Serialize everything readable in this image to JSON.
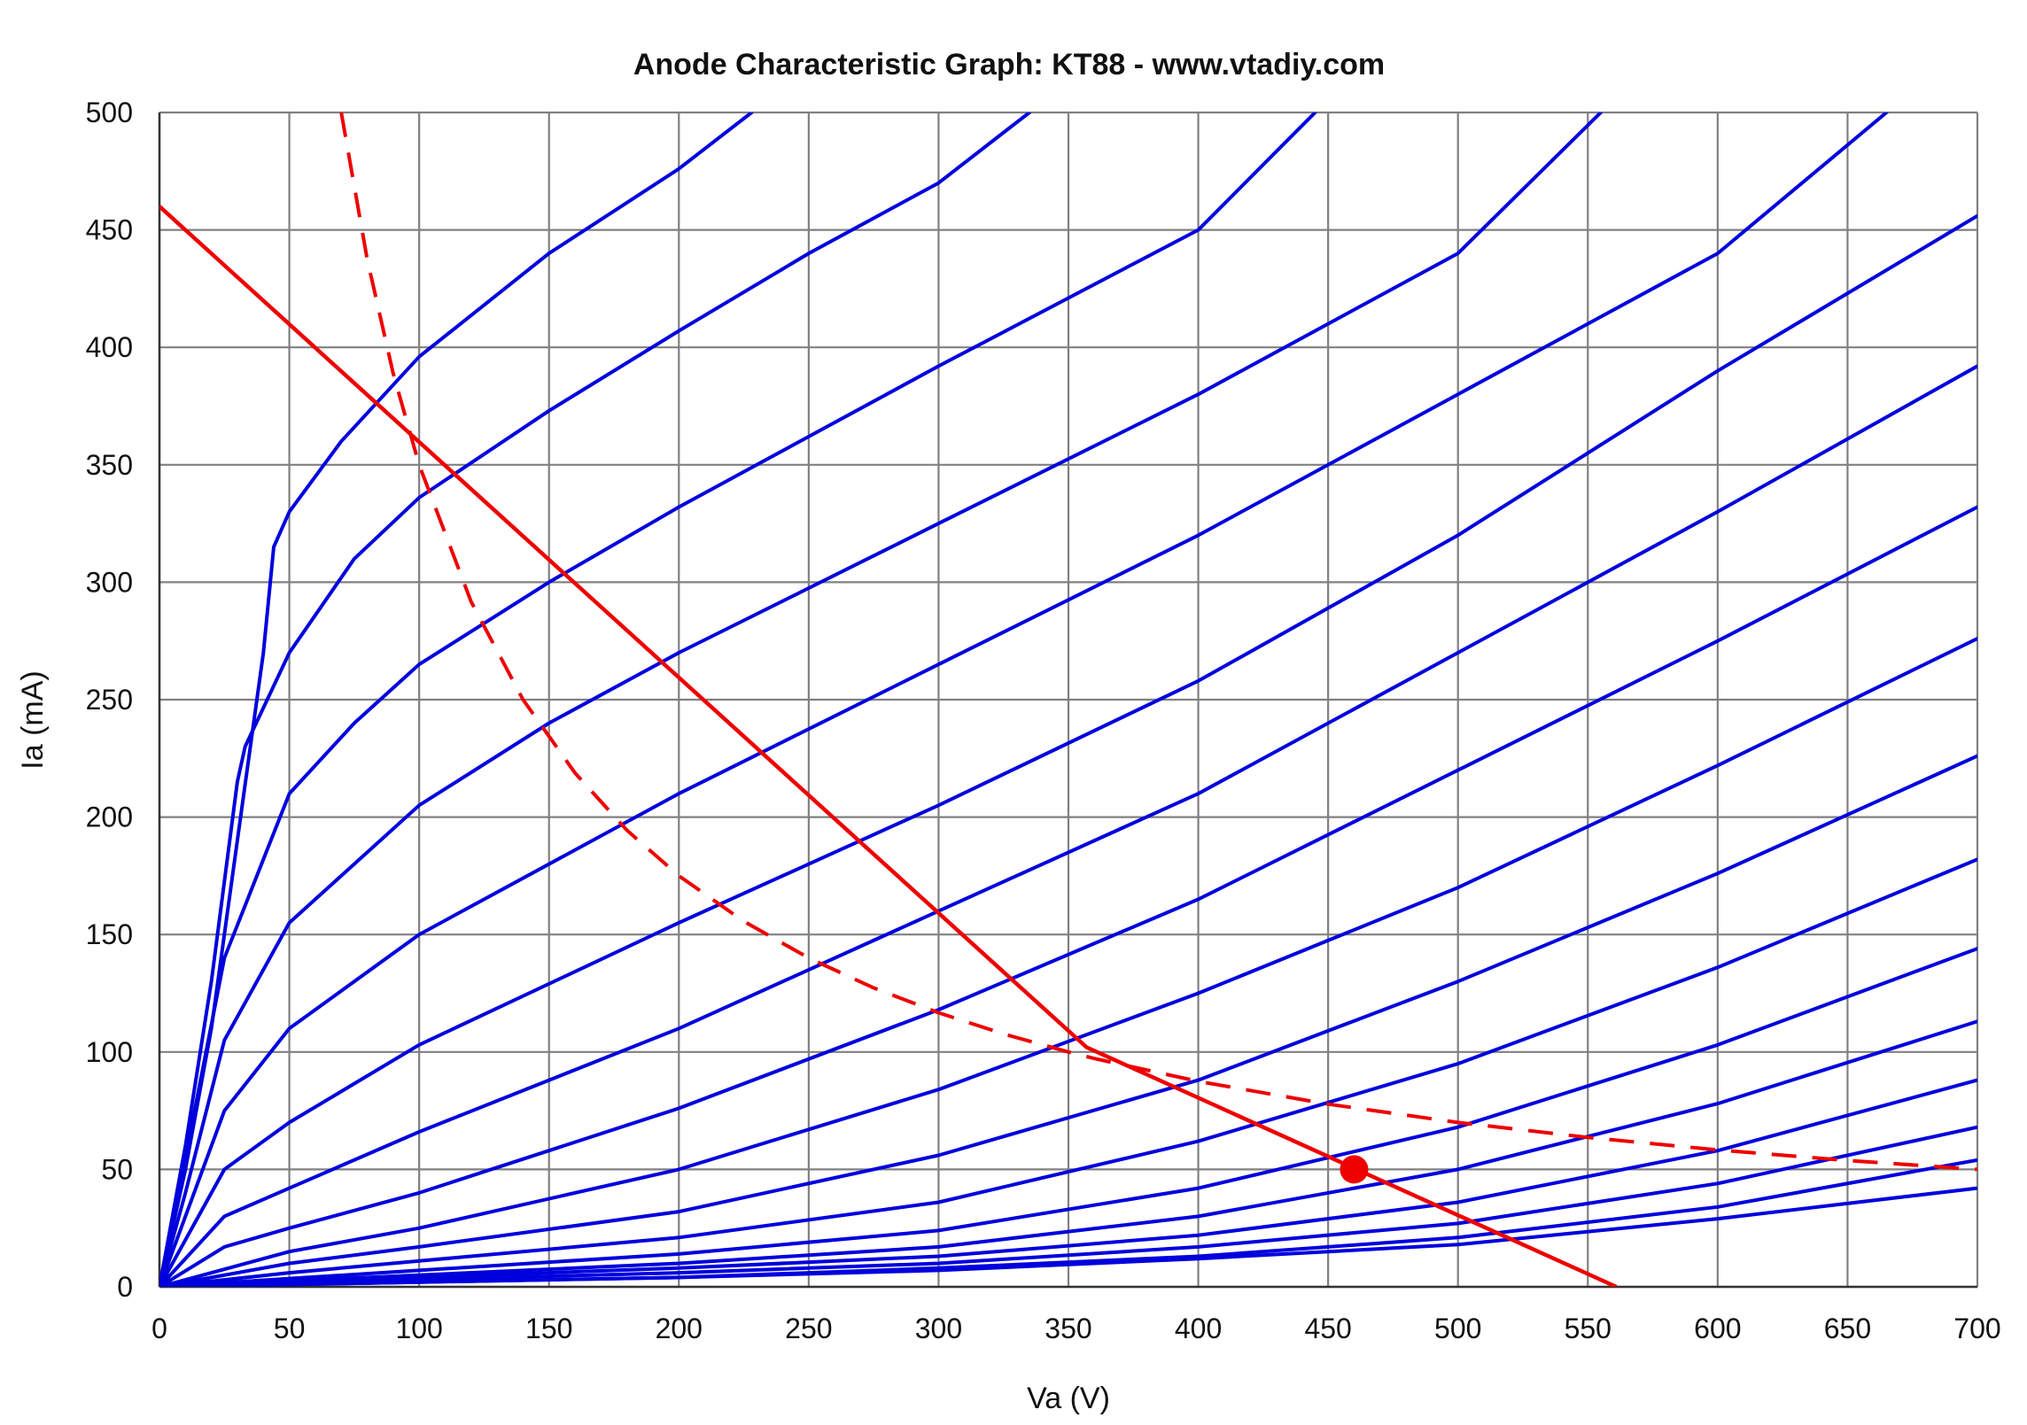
{
  "chart_data": {
    "type": "line",
    "title": "Anode Characteristic Graph: KT88 - www.vtadiy.com",
    "xlabel": "Va (V)",
    "ylabel": "Ia (mA)",
    "xlim": [
      0,
      700
    ],
    "ylim": [
      0,
      500
    ],
    "xticks": [
      0,
      50,
      100,
      150,
      200,
      250,
      300,
      350,
      400,
      450,
      500,
      550,
      600,
      650,
      700
    ],
    "yticks": [
      0,
      50,
      100,
      150,
      200,
      250,
      300,
      350,
      400,
      450,
      500
    ],
    "grid": true,
    "legend": "none",
    "colors": {
      "curves": "#0000dd",
      "load_line": "#ee0000",
      "dissipation": "#ee0000",
      "grid": "#808080"
    },
    "series": [
      {
        "points": [
          [
            0,
            0
          ],
          [
            10,
            50
          ],
          [
            20,
            110
          ],
          [
            30,
            190
          ],
          [
            40,
            270
          ],
          [
            44,
            315
          ],
          [
            50,
            330
          ],
          [
            70,
            360
          ],
          [
            100,
            396
          ],
          [
            150,
            440
          ],
          [
            200,
            476
          ],
          [
            228,
            500
          ]
        ]
      },
      {
        "points": [
          [
            0,
            0
          ],
          [
            10,
            60
          ],
          [
            20,
            130
          ],
          [
            30,
            215
          ],
          [
            33,
            230
          ],
          [
            50,
            270
          ],
          [
            75,
            310
          ],
          [
            100,
            336
          ],
          [
            150,
            373
          ],
          [
            200,
            407
          ],
          [
            250,
            440
          ],
          [
            300,
            470
          ],
          [
            335,
            500
          ]
        ]
      },
      {
        "points": [
          [
            0,
            0
          ],
          [
            10,
            55
          ],
          [
            25,
            140
          ],
          [
            50,
            210
          ],
          [
            75,
            240
          ],
          [
            100,
            265
          ],
          [
            150,
            300
          ],
          [
            200,
            332
          ],
          [
            300,
            392
          ],
          [
            400,
            450
          ],
          [
            445,
            500
          ]
        ]
      },
      {
        "points": [
          [
            0,
            0
          ],
          [
            10,
            40
          ],
          [
            25,
            105
          ],
          [
            50,
            155
          ],
          [
            100,
            205
          ],
          [
            150,
            240
          ],
          [
            200,
            270
          ],
          [
            300,
            325
          ],
          [
            400,
            380
          ],
          [
            500,
            440
          ],
          [
            555,
            500
          ]
        ]
      },
      {
        "points": [
          [
            0,
            0
          ],
          [
            10,
            30
          ],
          [
            25,
            75
          ],
          [
            50,
            110
          ],
          [
            100,
            150
          ],
          [
            200,
            210
          ],
          [
            300,
            265
          ],
          [
            400,
            320
          ],
          [
            500,
            380
          ],
          [
            600,
            440
          ],
          [
            665,
            500
          ]
        ]
      },
      {
        "points": [
          [
            0,
            0
          ],
          [
            25,
            50
          ],
          [
            50,
            70
          ],
          [
            100,
            103
          ],
          [
            200,
            155
          ],
          [
            300,
            205
          ],
          [
            400,
            258
          ],
          [
            500,
            320
          ],
          [
            600,
            390
          ],
          [
            700,
            456
          ]
        ]
      },
      {
        "points": [
          [
            0,
            0
          ],
          [
            25,
            30
          ],
          [
            50,
            42
          ],
          [
            100,
            66
          ],
          [
            200,
            110
          ],
          [
            300,
            160
          ],
          [
            400,
            210
          ],
          [
            500,
            270
          ],
          [
            600,
            330
          ],
          [
            700,
            392
          ]
        ]
      },
      {
        "points": [
          [
            0,
            0
          ],
          [
            25,
            17
          ],
          [
            50,
            25
          ],
          [
            100,
            40
          ],
          [
            200,
            76
          ],
          [
            300,
            118
          ],
          [
            400,
            165
          ],
          [
            500,
            220
          ],
          [
            600,
            275
          ],
          [
            700,
            332
          ]
        ]
      },
      {
        "points": [
          [
            0,
            0
          ],
          [
            50,
            15
          ],
          [
            100,
            25
          ],
          [
            200,
            50
          ],
          [
            300,
            84
          ],
          [
            400,
            125
          ],
          [
            500,
            170
          ],
          [
            600,
            222
          ],
          [
            700,
            276
          ]
        ]
      },
      {
        "points": [
          [
            0,
            0
          ],
          [
            50,
            10
          ],
          [
            100,
            17
          ],
          [
            200,
            32
          ],
          [
            300,
            56
          ],
          [
            400,
            88
          ],
          [
            500,
            130
          ],
          [
            600,
            176
          ],
          [
            700,
            226
          ]
        ]
      },
      {
        "points": [
          [
            0,
            0
          ],
          [
            50,
            6
          ],
          [
            100,
            11
          ],
          [
            200,
            21
          ],
          [
            300,
            36
          ],
          [
            400,
            62
          ],
          [
            500,
            95
          ],
          [
            600,
            136
          ],
          [
            700,
            182
          ]
        ]
      },
      {
        "points": [
          [
            0,
            0
          ],
          [
            100,
            7
          ],
          [
            200,
            14
          ],
          [
            300,
            24
          ],
          [
            400,
            42
          ],
          [
            500,
            68
          ],
          [
            600,
            103
          ],
          [
            700,
            144
          ]
        ]
      },
      {
        "points": [
          [
            0,
            0
          ],
          [
            100,
            5
          ],
          [
            200,
            10
          ],
          [
            300,
            17
          ],
          [
            400,
            30
          ],
          [
            500,
            50
          ],
          [
            600,
            78
          ],
          [
            700,
            113
          ]
        ]
      },
      {
        "points": [
          [
            0,
            0
          ],
          [
            100,
            4
          ],
          [
            200,
            8
          ],
          [
            300,
            13
          ],
          [
            400,
            22
          ],
          [
            500,
            36
          ],
          [
            600,
            58
          ],
          [
            700,
            88
          ]
        ]
      },
      {
        "points": [
          [
            0,
            0
          ],
          [
            100,
            3
          ],
          [
            200,
            6
          ],
          [
            300,
            10
          ],
          [
            400,
            17
          ],
          [
            500,
            27
          ],
          [
            600,
            44
          ],
          [
            700,
            68
          ]
        ]
      },
      {
        "points": [
          [
            0,
            0
          ],
          [
            100,
            2
          ],
          [
            200,
            4
          ],
          [
            300,
            8
          ],
          [
            400,
            13
          ],
          [
            500,
            21
          ],
          [
            600,
            34
          ],
          [
            700,
            54
          ]
        ]
      },
      {
        "points": [
          [
            0,
            0
          ],
          [
            100,
            2
          ],
          [
            200,
            4
          ],
          [
            300,
            7
          ],
          [
            400,
            12
          ],
          [
            500,
            18
          ],
          [
            600,
            29
          ],
          [
            700,
            42
          ]
        ]
      }
    ],
    "load_line": [
      [
        0,
        460
      ],
      [
        357,
        102
      ],
      [
        561,
        0
      ]
    ],
    "dissipation_curve": [
      [
        70,
        500
      ],
      [
        80,
        437.5
      ],
      [
        90,
        388.9
      ],
      [
        100,
        350
      ],
      [
        120,
        291.7
      ],
      [
        140,
        250
      ],
      [
        160,
        218.8
      ],
      [
        180,
        194.4
      ],
      [
        200,
        175
      ],
      [
        225,
        155.6
      ],
      [
        250,
        140
      ],
      [
        275,
        127.3
      ],
      [
        300,
        116.7
      ],
      [
        325,
        107.7
      ],
      [
        350,
        100
      ],
      [
        360,
        97.2
      ],
      [
        400,
        87.5
      ],
      [
        450,
        77.8
      ],
      [
        500,
        70
      ],
      [
        550,
        63.6
      ],
      [
        600,
        58.3
      ],
      [
        650,
        53.8
      ],
      [
        700,
        50
      ]
    ],
    "operating_point": {
      "va": 460,
      "ia": 50
    }
  }
}
